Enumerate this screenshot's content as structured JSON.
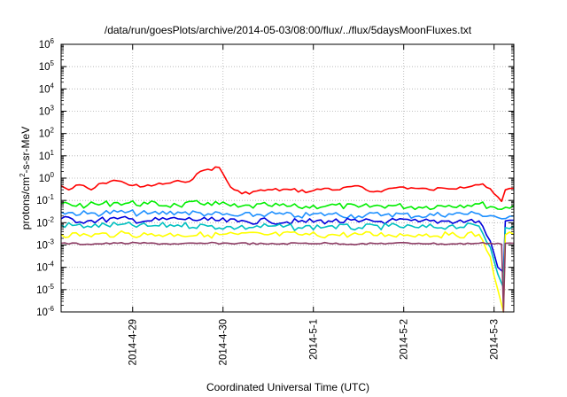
{
  "chart_data": {
    "type": "line",
    "title": "/data/run/goesPlots/archive/2014-05-03/08:00/flux/../flux/5daysMoonFluxes.txt",
    "xlabel": "Coordinated Universal Time (UTC)",
    "ylabel": "protons/cm²-s-sr-MeV",
    "ylabel_base": "protons/cm",
    "ylabel_sup": "2",
    "ylabel_tail": "-s-sr-MeV",
    "y_scale": "log",
    "ylim": [
      1e-06,
      1000000.0
    ],
    "xlim": [
      "2014-04-28T05:00",
      "2014-05-03T05:15"
    ],
    "y_tick_exponents": [
      "-6",
      "-5",
      "-4",
      "-3",
      "-2",
      "-1",
      "0",
      "1",
      "2",
      "3",
      "4",
      "5",
      "6"
    ],
    "y_tick_base": "10",
    "x_ticks": [
      {
        "date": "2014-04-29T00:00",
        "label": "2014-4-29"
      },
      {
        "date": "2014-04-30T00:00",
        "label": "2014-4-30"
      },
      {
        "date": "2014-05-01T00:00",
        "label": "2014-5-1"
      },
      {
        "date": "2014-05-02T00:00",
        "label": "2014-5-2"
      },
      {
        "date": "2014-05-03T00:00",
        "label": "2014-5-3"
      }
    ],
    "grid": true,
    "legend": "none",
    "series": [
      {
        "color": "#ff0000",
        "x": [
          "2014-04-28T05:00",
          "2014-04-28T07:00",
          "2014-04-28T10:00",
          "2014-04-28T13:00",
          "2014-04-28T16:00",
          "2014-04-28T19:00",
          "2014-04-28T22:00",
          "2014-04-29T02:00",
          "2014-04-29T06:00",
          "2014-04-29T10:00",
          "2014-04-29T13:00",
          "2014-04-29T16:00",
          "2014-04-29T18:00",
          "2014-04-29T20:00",
          "2014-04-29T23:00",
          "2014-04-30T02:00",
          "2014-04-30T05:00",
          "2014-04-30T08:00",
          "2014-04-30T13:00",
          "2014-04-30T18:00",
          "2014-04-30T23:00",
          "2014-05-01T03:00",
          "2014-05-01T07:00",
          "2014-05-01T11:00",
          "2014-05-01T15:00",
          "2014-05-01T19:00",
          "2014-05-01T23:00",
          "2014-05-02T03:00",
          "2014-05-02T07:00",
          "2014-05-02T11:00",
          "2014-05-02T15:00",
          "2014-05-02T19:00",
          "2014-05-02T21:00",
          "2014-05-03T00:00",
          "2014-05-03T02:00",
          "2014-05-03T03:00",
          "2014-05-03T05:15"
        ],
        "y": [
          0.45,
          0.3,
          0.5,
          0.3,
          0.6,
          0.8,
          0.6,
          0.4,
          0.5,
          0.6,
          0.7,
          0.9,
          2.0,
          2.5,
          3.0,
          0.4,
          0.2,
          0.25,
          0.3,
          0.3,
          0.25,
          0.35,
          0.3,
          0.45,
          0.25,
          0.3,
          0.4,
          0.35,
          0.3,
          0.35,
          0.4,
          0.5,
          0.55,
          0.2,
          0.09,
          0.3,
          0.35
        ]
      },
      {
        "color": "#00ee00",
        "x": [
          "2014-04-28T05:00",
          "2014-04-28T12:00",
          "2014-04-28T20:00",
          "2014-04-29T04:00",
          "2014-04-29T12:00",
          "2014-04-29T20:00",
          "2014-04-30T04:00",
          "2014-04-30T12:00",
          "2014-04-30T20:00",
          "2014-05-01T04:00",
          "2014-05-01T12:00",
          "2014-05-01T20:00",
          "2014-05-02T04:00",
          "2014-05-02T12:00",
          "2014-05-02T20:00",
          "2014-05-03T00:00",
          "2014-05-03T02:00",
          "2014-05-03T05:15"
        ],
        "y": [
          0.07,
          0.06,
          0.08,
          0.07,
          0.06,
          0.08,
          0.05,
          0.06,
          0.05,
          0.06,
          0.05,
          0.06,
          0.05,
          0.06,
          0.07,
          0.05,
          0.04,
          0.06
        ]
      },
      {
        "color": "#1e90ff",
        "x": [
          "2014-04-28T05:00",
          "2014-04-28T12:00",
          "2014-04-28T20:00",
          "2014-04-29T04:00",
          "2014-04-29T12:00",
          "2014-04-29T20:00",
          "2014-04-30T04:00",
          "2014-04-30T12:00",
          "2014-04-30T20:00",
          "2014-05-01T04:00",
          "2014-05-01T12:00",
          "2014-05-01T20:00",
          "2014-05-02T04:00",
          "2014-05-02T12:00",
          "2014-05-02T20:00",
          "2014-05-03T00:00",
          "2014-05-03T02:00",
          "2014-05-03T05:15"
        ],
        "y": [
          0.03,
          0.025,
          0.03,
          0.025,
          0.03,
          0.025,
          0.02,
          0.025,
          0.02,
          0.025,
          0.02,
          0.025,
          0.02,
          0.025,
          0.025,
          0.02,
          0.015,
          0.02
        ]
      },
      {
        "color": "#0000dd",
        "x": [
          "2014-04-28T05:00",
          "2014-04-28T12:00",
          "2014-04-28T20:00",
          "2014-04-29T04:00",
          "2014-04-29T12:00",
          "2014-04-29T20:00",
          "2014-04-30T04:00",
          "2014-04-30T12:00",
          "2014-04-30T20:00",
          "2014-05-01T04:00",
          "2014-05-01T12:00",
          "2014-05-01T20:00",
          "2014-05-02T04:00",
          "2014-05-02T12:00",
          "2014-05-02T20:00",
          "2014-05-02T23:00",
          "2014-05-03T01:00",
          "2014-05-03T02:30",
          "2014-05-03T03:00",
          "2014-05-03T05:15"
        ],
        "y": [
          0.015,
          0.012,
          0.015,
          0.012,
          0.015,
          0.013,
          0.011,
          0.012,
          0.011,
          0.012,
          0.011,
          0.012,
          0.011,
          0.012,
          0.012,
          0.0015,
          0.0001,
          6e-05,
          0.012,
          0.013
        ]
      },
      {
        "color": "#00c0c0",
        "x": [
          "2014-04-28T05:00",
          "2014-04-28T12:00",
          "2014-04-28T20:00",
          "2014-04-29T04:00",
          "2014-04-29T12:00",
          "2014-04-29T20:00",
          "2014-04-30T04:00",
          "2014-04-30T12:00",
          "2014-04-30T20:00",
          "2014-05-01T04:00",
          "2014-05-01T12:00",
          "2014-05-01T20:00",
          "2014-05-02T04:00",
          "2014-05-02T12:00",
          "2014-05-02T20:00",
          "2014-05-02T23:00",
          "2014-05-03T01:00",
          "2014-05-03T02:30",
          "2014-05-03T03:00",
          "2014-05-03T05:15"
        ],
        "y": [
          0.008,
          0.007,
          0.008,
          0.007,
          0.008,
          0.007,
          0.006,
          0.007,
          0.006,
          0.007,
          0.006,
          0.007,
          0.006,
          0.007,
          0.007,
          0.0008,
          5e-05,
          1.2e-05,
          0.006,
          0.007
        ]
      },
      {
        "color": "#ffff00",
        "x": [
          "2014-04-28T05:00",
          "2014-04-28T12:00",
          "2014-04-28T20:00",
          "2014-04-29T04:00",
          "2014-04-29T12:00",
          "2014-04-29T20:00",
          "2014-04-30T04:00",
          "2014-04-30T12:00",
          "2014-04-30T20:00",
          "2014-05-01T04:00",
          "2014-05-01T12:00",
          "2014-05-01T20:00",
          "2014-05-02T04:00",
          "2014-05-02T12:00",
          "2014-05-02T20:00",
          "2014-05-02T23:00",
          "2014-05-03T01:00",
          "2014-05-03T02:30",
          "2014-05-03T03:00",
          "2014-05-03T05:15"
        ],
        "y": [
          0.003,
          0.0028,
          0.0031,
          0.0029,
          0.003,
          0.0028,
          0.003,
          0.0029,
          0.003,
          0.0028,
          0.003,
          0.0029,
          0.003,
          0.0028,
          0.003,
          0.0003,
          1e-05,
          1e-06,
          0.0029,
          0.003
        ]
      },
      {
        "color": "#8b3a62",
        "x": [
          "2014-04-28T05:00",
          "2014-04-28T12:00",
          "2014-04-28T20:00",
          "2014-04-29T04:00",
          "2014-04-29T12:00",
          "2014-04-29T20:00",
          "2014-04-30T04:00",
          "2014-04-30T12:00",
          "2014-04-30T20:00",
          "2014-05-01T04:00",
          "2014-05-01T12:00",
          "2014-05-01T20:00",
          "2014-05-02T04:00",
          "2014-05-02T12:00",
          "2014-05-02T20:00",
          "2014-05-02T23:00",
          "2014-05-03T01:00",
          "2014-05-03T02:00",
          "2014-05-03T02:30",
          "2014-05-03T03:00",
          "2014-05-03T05:15"
        ],
        "y": [
          0.0012,
          0.0011,
          0.0012,
          0.0012,
          0.0011,
          0.0012,
          0.0012,
          0.0011,
          0.0012,
          0.0012,
          0.0011,
          0.0012,
          0.0012,
          0.0011,
          0.0012,
          0.0012,
          0.0012,
          0.0011,
          1e-06,
          0.0012,
          0.0012
        ]
      }
    ]
  }
}
